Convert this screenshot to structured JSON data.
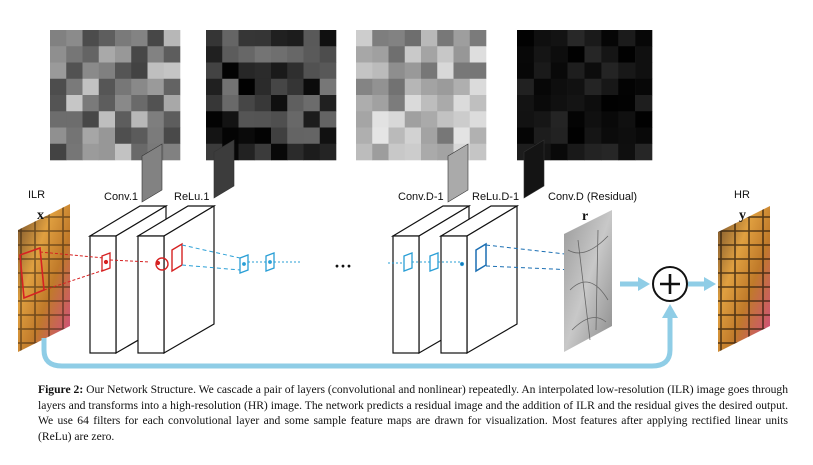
{
  "diagram": {
    "input_label": "ILR",
    "input_symbol": "x",
    "output_label": "HR",
    "output_symbol": "y",
    "residual_symbol": "r",
    "layer_labels": {
      "conv1": "Conv.1",
      "relu1": "ReLu.1",
      "convd1": "Conv.D-1",
      "relud1": "ReLu.D-1",
      "convd": "Conv.D (Residual)"
    },
    "ellipsis": "···",
    "plus_symbol": "+",
    "colors": {
      "early_layers": "#d62222",
      "mid_layers": "#2a9fd6",
      "late_layers": "#1b6fb3",
      "skip_arrow": "#8fcde6"
    },
    "feature_map_panels": [
      {
        "name": "conv1",
        "brightness": "medium"
      },
      {
        "name": "relu1",
        "brightness": "dark"
      },
      {
        "name": "convd1",
        "brightness": "light"
      },
      {
        "name": "relud1",
        "brightness": "very-dark"
      }
    ]
  },
  "caption": {
    "label": "Figure 2:",
    "text": "Our Network Structure. We cascade a pair of layers (convolutional and nonlinear) repeatedly. An interpolated low-resolution (ILR) image goes through layers and transforms into a high-resolution (HR) image. The network predicts a residual image and the addition of ILR and the residual gives the desired output. We use 64 filters for each convolutional layer and some sample feature maps are drawn for visualization. Most features after applying rectified linear units (ReLu) are zero."
  }
}
